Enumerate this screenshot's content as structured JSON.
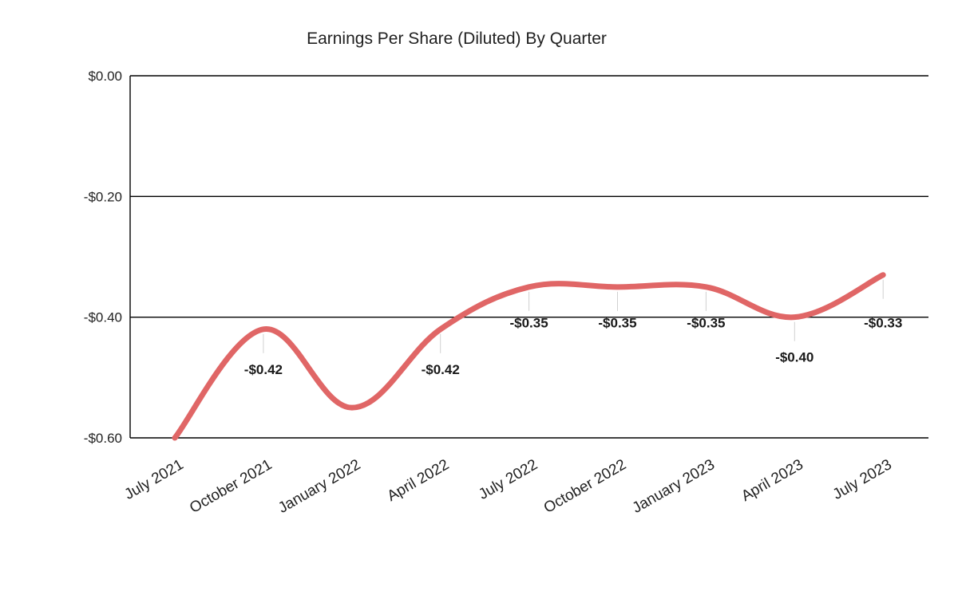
{
  "chart_data": {
    "type": "line",
    "title": "Earnings Per Share (Diluted) By Quarter",
    "xlabel": "",
    "ylabel": "",
    "categories": [
      "July 2021",
      "October 2021",
      "January 2022",
      "April 2022",
      "July 2022",
      "October 2022",
      "January 2023",
      "April 2023",
      "July 2023"
    ],
    "series": [
      {
        "values": [
          -0.6,
          -0.42,
          -0.55,
          -0.42,
          -0.35,
          -0.35,
          -0.35,
          -0.4,
          -0.33
        ],
        "labels": [
          "",
          "-$0.42",
          "",
          "-$0.42",
          "-$0.35",
          "-$0.35",
          "-$0.35",
          "-$0.40",
          "-$0.33"
        ],
        "color": "#e06666"
      }
    ],
    "ylim": [
      -0.6,
      0.0
    ],
    "yticks": [
      0.0,
      -0.2,
      -0.4,
      -0.6
    ],
    "ytick_labels": [
      "$0.00",
      "-$0.20",
      "-$0.40",
      "-$0.60"
    ],
    "grid": true,
    "legend": "none",
    "smooth": true
  }
}
